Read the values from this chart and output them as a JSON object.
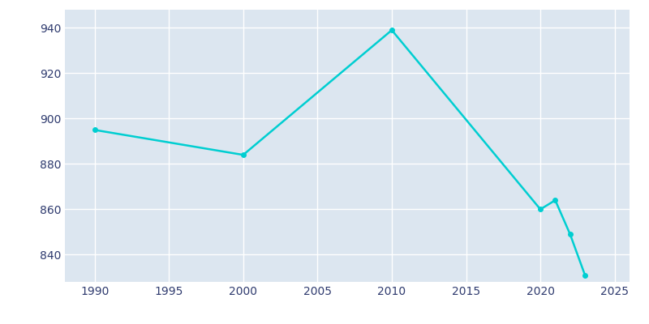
{
  "years": [
    1990,
    2000,
    2010,
    2020,
    2021,
    2022,
    2023
  ],
  "population": [
    895,
    884,
    939,
    860,
    864,
    849,
    831
  ],
  "line_color": "#00CED1",
  "fig_bg_color": "#ffffff",
  "plot_bg_color": "#DCE6F0",
  "xlim": [
    1988,
    2026
  ],
  "ylim": [
    828,
    948
  ],
  "yticks": [
    840,
    860,
    880,
    900,
    920,
    940
  ],
  "xticks": [
    1990,
    1995,
    2000,
    2005,
    2010,
    2015,
    2020,
    2025
  ],
  "line_width": 1.8,
  "marker": "o",
  "marker_size": 4,
  "tick_label_color": "#2E3A6E",
  "tick_label_size": 10,
  "grid_color": "#ffffff",
  "grid_linewidth": 1.0
}
